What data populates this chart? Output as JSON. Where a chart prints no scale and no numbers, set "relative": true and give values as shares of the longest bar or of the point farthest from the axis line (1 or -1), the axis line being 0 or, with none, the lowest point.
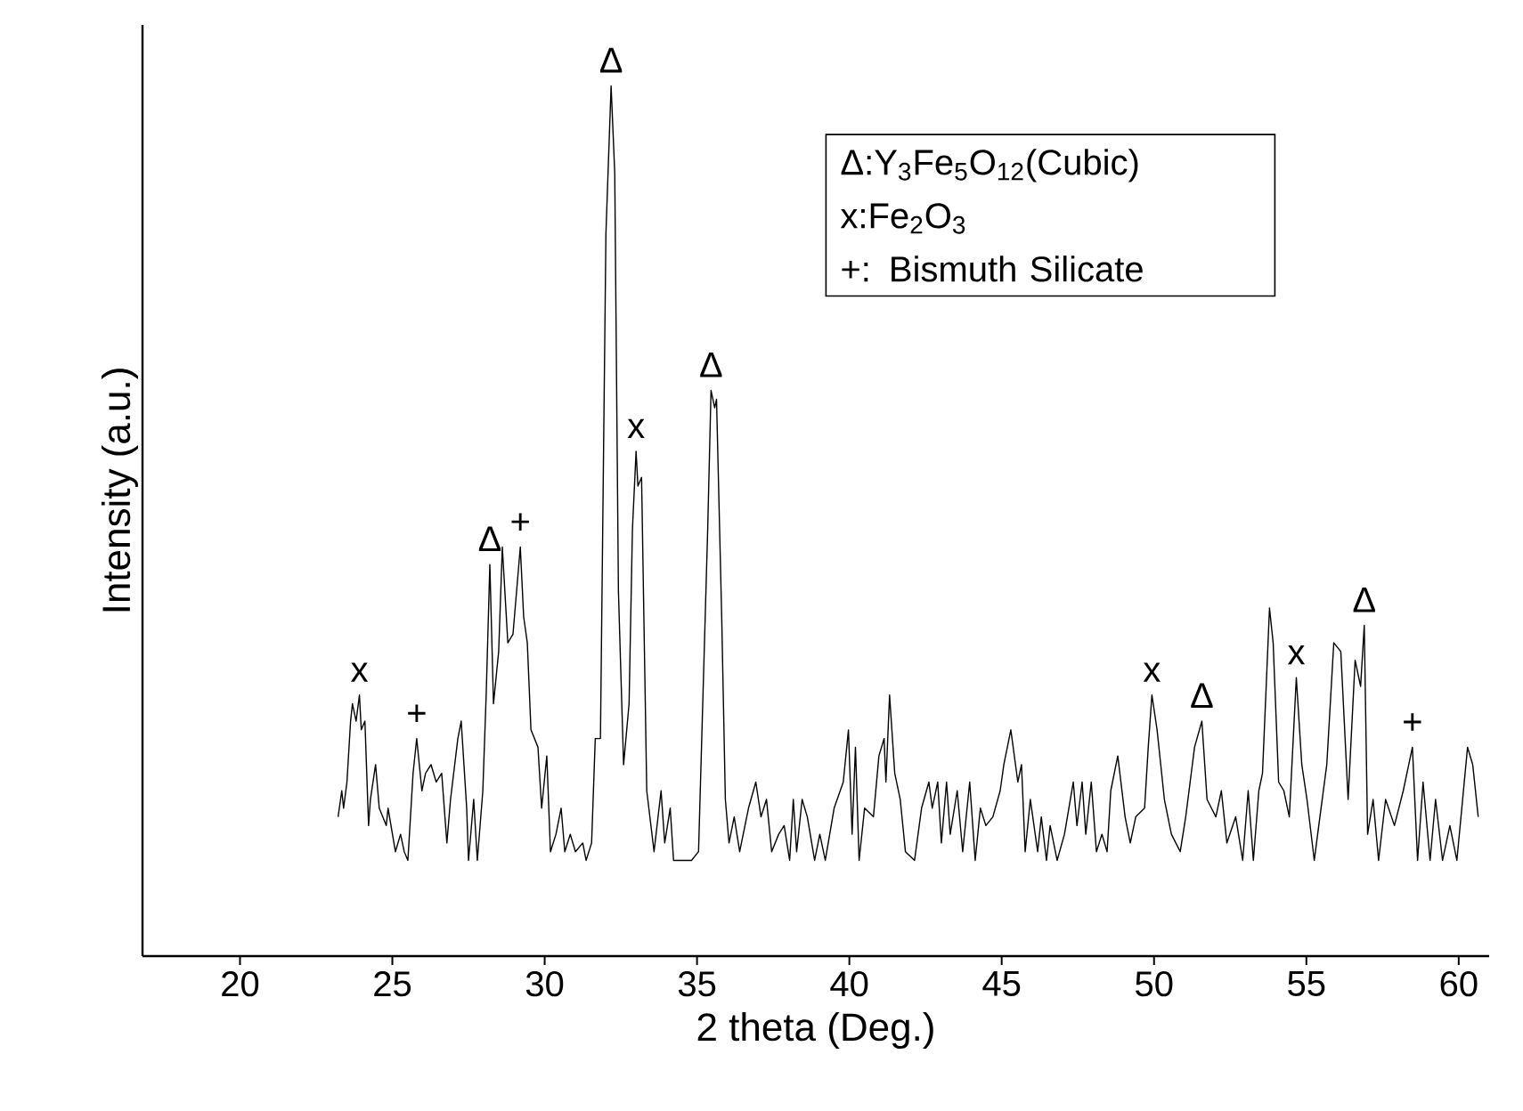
{
  "chart_data": {
    "type": "line",
    "xlabel": "2 theta (Deg.)",
    "ylabel": "Intensity (a.u.)",
    "relative": true,
    "marker": "none",
    "line_style": "solid",
    "xlim": [
      16.8,
      61
    ],
    "xticks": [
      20,
      25,
      30,
      35,
      40,
      45,
      50,
      55,
      60
    ],
    "x": [
      23.22,
      23.34,
      23.4,
      23.51,
      23.63,
      23.69,
      23.81,
      23.92,
      23.98,
      24.1,
      24.22,
      24.28,
      24.45,
      24.57,
      24.8,
      24.86,
      25.1,
      25.27,
      25.39,
      25.51,
      25.68,
      25.8,
      25.97,
      26.09,
      26.27,
      26.44,
      26.62,
      26.79,
      26.91,
      27.15,
      27.26,
      27.44,
      27.5,
      27.67,
      27.79,
      27.97,
      28.08,
      28.2,
      28.32,
      28.49,
      28.61,
      28.79,
      28.96,
      29.2,
      29.31,
      29.43,
      29.55,
      29.78,
      29.9,
      30.07,
      30.19,
      30.37,
      30.54,
      30.66,
      30.84,
      31.01,
      31.25,
      31.36,
      31.54,
      31.66,
      31.83,
      32.01,
      32.18,
      32.3,
      32.42,
      32.59,
      32.77,
      32.88,
      33.0,
      33.06,
      33.18,
      33.35,
      33.59,
      33.82,
      33.94,
      34.12,
      34.23,
      34.82,
      35.05,
      35.35,
      35.46,
      35.58,
      35.64,
      35.81,
      35.93,
      36.05,
      36.22,
      36.4,
      36.69,
      36.93,
      37.1,
      37.28,
      37.45,
      37.68,
      37.86,
      38.04,
      38.16,
      38.27,
      38.45,
      38.62,
      38.86,
      39.03,
      39.21,
      39.5,
      39.8,
      39.97,
      40.09,
      40.2,
      40.32,
      40.5,
      40.79,
      40.97,
      41.14,
      41.2,
      41.32,
      41.49,
      41.67,
      41.84,
      42.14,
      42.37,
      42.61,
      42.72,
      42.9,
      43.02,
      43.19,
      43.31,
      43.54,
      43.72,
      43.95,
      44.13,
      44.3,
      44.48,
      44.71,
      44.95,
      45.07,
      45.3,
      45.53,
      45.65,
      45.77,
      45.94,
      46.18,
      46.3,
      46.47,
      46.59,
      46.82,
      47.06,
      47.35,
      47.47,
      47.64,
      47.76,
      47.94,
      48.11,
      48.29,
      48.46,
      48.58,
      48.81,
      49.05,
      49.22,
      49.4,
      49.69,
      49.81,
      49.93,
      50.1,
      50.34,
      50.57,
      50.86,
      51.04,
      51.33,
      51.57,
      51.74,
      52.03,
      52.21,
      52.39,
      52.68,
      52.91,
      53.09,
      53.26,
      53.44,
      53.56,
      53.79,
      53.91,
      54.09,
      54.26,
      54.44,
      54.67,
      54.85,
      55.02,
      55.26,
      55.37,
      55.67,
      55.9,
      56.13,
      56.37,
      56.6,
      56.78,
      56.9,
      57.01,
      57.19,
      57.37,
      57.6,
      57.89,
      58.18,
      58.48,
      58.65,
      58.83,
      59.06,
      59.24,
      59.47,
      59.71,
      59.94,
      60.29,
      60.46,
      60.64
    ],
    "series": [
      {
        "color": "#000000",
        "values": [
          0.16,
          0.19,
          0.17,
          0.2,
          0.27,
          0.29,
          0.27,
          0.3,
          0.26,
          0.27,
          0.15,
          0.18,
          0.22,
          0.17,
          0.15,
          0.17,
          0.12,
          0.14,
          0.12,
          0.11,
          0.21,
          0.25,
          0.19,
          0.21,
          0.22,
          0.2,
          0.21,
          0.13,
          0.18,
          0.25,
          0.27,
          0.17,
          0.11,
          0.18,
          0.11,
          0.19,
          0.3,
          0.45,
          0.29,
          0.35,
          0.47,
          0.36,
          0.37,
          0.47,
          0.39,
          0.36,
          0.26,
          0.24,
          0.17,
          0.23,
          0.12,
          0.14,
          0.17,
          0.12,
          0.14,
          0.12,
          0.13,
          0.11,
          0.13,
          0.25,
          0.25,
          0.83,
          1.0,
          0.9,
          0.42,
          0.22,
          0.29,
          0.49,
          0.58,
          0.54,
          0.55,
          0.19,
          0.12,
          0.19,
          0.13,
          0.17,
          0.11,
          0.11,
          0.12,
          0.49,
          0.65,
          0.63,
          0.64,
          0.39,
          0.18,
          0.13,
          0.16,
          0.12,
          0.17,
          0.2,
          0.16,
          0.18,
          0.12,
          0.14,
          0.15,
          0.11,
          0.18,
          0.12,
          0.18,
          0.16,
          0.11,
          0.14,
          0.11,
          0.17,
          0.2,
          0.26,
          0.14,
          0.24,
          0.11,
          0.17,
          0.16,
          0.23,
          0.25,
          0.2,
          0.3,
          0.21,
          0.18,
          0.12,
          0.11,
          0.17,
          0.2,
          0.17,
          0.2,
          0.13,
          0.2,
          0.14,
          0.19,
          0.12,
          0.2,
          0.11,
          0.17,
          0.15,
          0.16,
          0.19,
          0.22,
          0.26,
          0.2,
          0.22,
          0.12,
          0.18,
          0.12,
          0.16,
          0.11,
          0.15,
          0.11,
          0.14,
          0.2,
          0.15,
          0.2,
          0.14,
          0.2,
          0.12,
          0.14,
          0.12,
          0.19,
          0.23,
          0.16,
          0.13,
          0.16,
          0.17,
          0.24,
          0.3,
          0.26,
          0.18,
          0.14,
          0.12,
          0.16,
          0.24,
          0.27,
          0.18,
          0.16,
          0.19,
          0.13,
          0.16,
          0.11,
          0.19,
          0.11,
          0.19,
          0.21,
          0.4,
          0.36,
          0.2,
          0.19,
          0.16,
          0.32,
          0.22,
          0.18,
          0.11,
          0.14,
          0.22,
          0.36,
          0.35,
          0.18,
          0.34,
          0.31,
          0.38,
          0.14,
          0.18,
          0.11,
          0.18,
          0.15,
          0.19,
          0.24,
          0.11,
          0.2,
          0.11,
          0.18,
          0.11,
          0.15,
          0.11,
          0.24,
          0.22,
          0.16
        ]
      }
    ],
    "annotations": [
      {
        "text": "x",
        "x": 23.92,
        "y": 0.3
      },
      {
        "text": "+",
        "x": 25.8,
        "y": 0.25
      },
      {
        "text": "Δ",
        "x": 28.2,
        "y": 0.45
      },
      {
        "text": "+",
        "x": 29.2,
        "y": 0.47
      },
      {
        "text": "Δ",
        "x": 32.18,
        "y": 1.0
      },
      {
        "text": "x",
        "x": 33.0,
        "y": 0.58
      },
      {
        "text": "Δ",
        "x": 35.46,
        "y": 0.65
      },
      {
        "text": "x",
        "x": 49.93,
        "y": 0.3
      },
      {
        "text": "Δ",
        "x": 51.57,
        "y": 0.27
      },
      {
        "text": "x",
        "x": 54.67,
        "y": 0.32
      },
      {
        "text": "Δ",
        "x": 56.9,
        "y": 0.38
      },
      {
        "text": "+",
        "x": 58.48,
        "y": 0.24
      },
      "Δ:Y$_{3}$Fe$_{5}$O$_{12}$(Cubic)",
      "x:Fe$_{2}$O$_{3}$",
      "+: Bismuth Silicate"
    ]
  }
}
